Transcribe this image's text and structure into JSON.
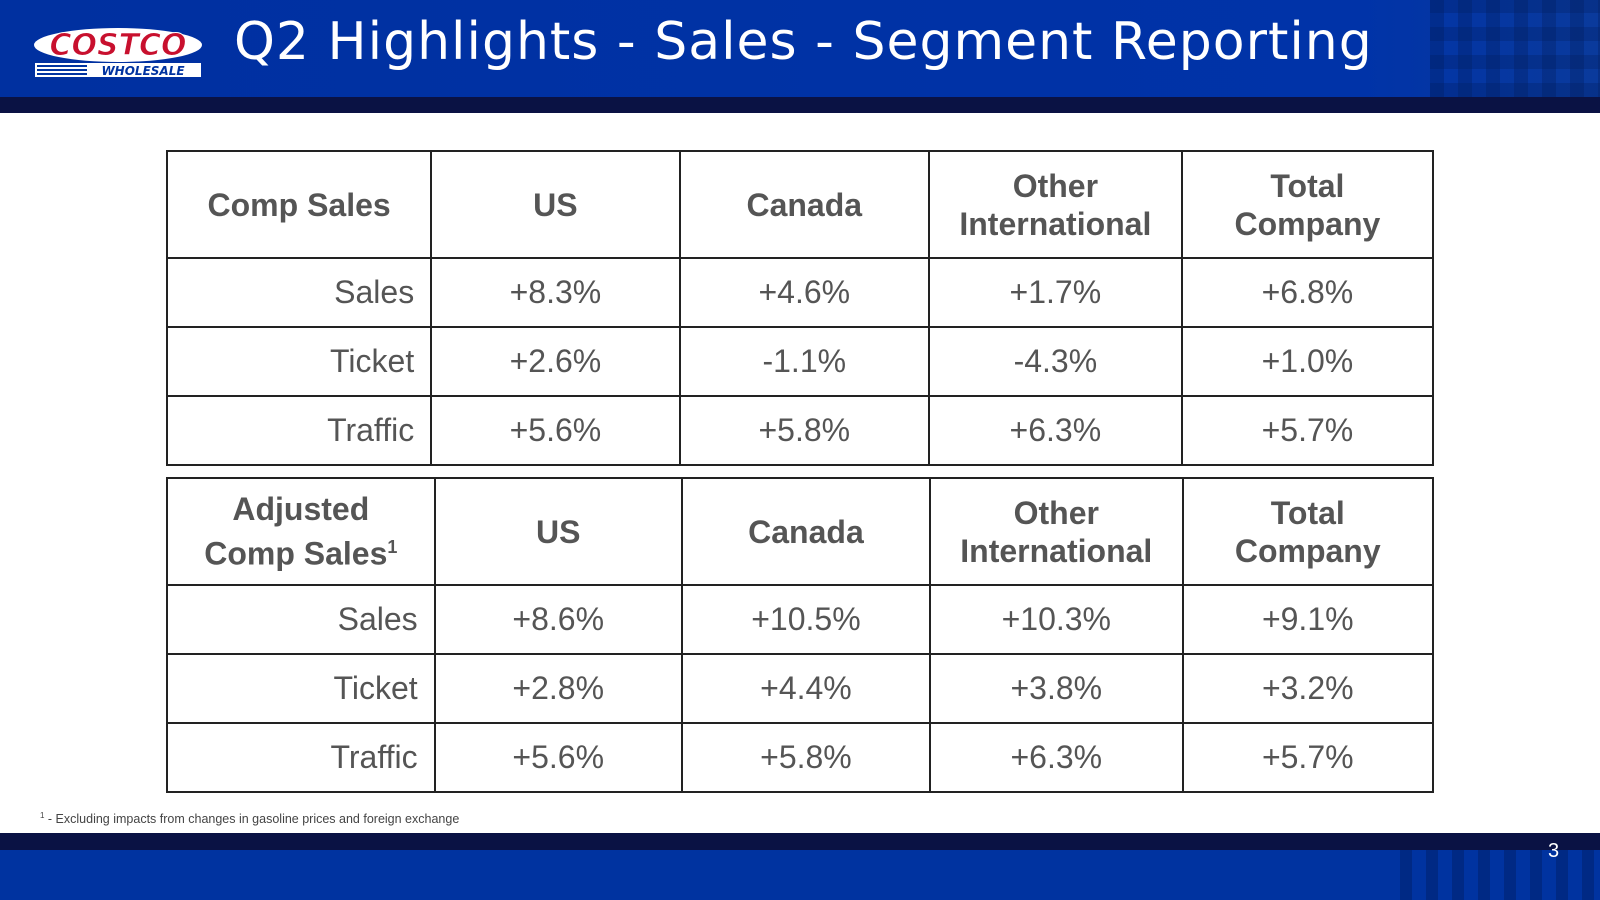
{
  "header": {
    "title": "Q2 Highlights - Sales - Segment Reporting",
    "logo_text": "COSTCO WHOLESALE",
    "logo_colors": {
      "red": "#c8102e",
      "blue": "#0033a0"
    }
  },
  "tables": [
    {
      "headers": [
        "Comp Sales",
        "US",
        "Canada",
        "Other International",
        "Total Company"
      ],
      "header_sup": "",
      "rows": [
        {
          "label": "Sales",
          "values": [
            "+8.3%",
            "+4.6%",
            "+1.7%",
            "+6.8%"
          ]
        },
        {
          "label": "Ticket",
          "values": [
            "+2.6%",
            "-1.1%",
            "-4.3%",
            "+1.0%"
          ]
        },
        {
          "label": "Traffic",
          "values": [
            "+5.6%",
            "+5.8%",
            "+6.3%",
            "+5.7%"
          ]
        }
      ]
    },
    {
      "headers": [
        "Adjusted Comp Sales",
        "US",
        "Canada",
        "Other International",
        "Total Company"
      ],
      "header_sup": "1",
      "rows": [
        {
          "label": "Sales",
          "values": [
            "+8.6%",
            "+10.5%",
            "+10.3%",
            "+9.1%"
          ]
        },
        {
          "label": "Ticket",
          "values": [
            "+2.8%",
            "+4.4%",
            "+3.8%",
            "+3.2%"
          ]
        },
        {
          "label": "Traffic",
          "values": [
            "+5.6%",
            "+5.8%",
            "+6.3%",
            "+5.7%"
          ]
        }
      ]
    }
  ],
  "footnote": {
    "marker": "1",
    "text": " - Excluding impacts from changes in gasoline prices and foreign exchange"
  },
  "page_number": "3"
}
